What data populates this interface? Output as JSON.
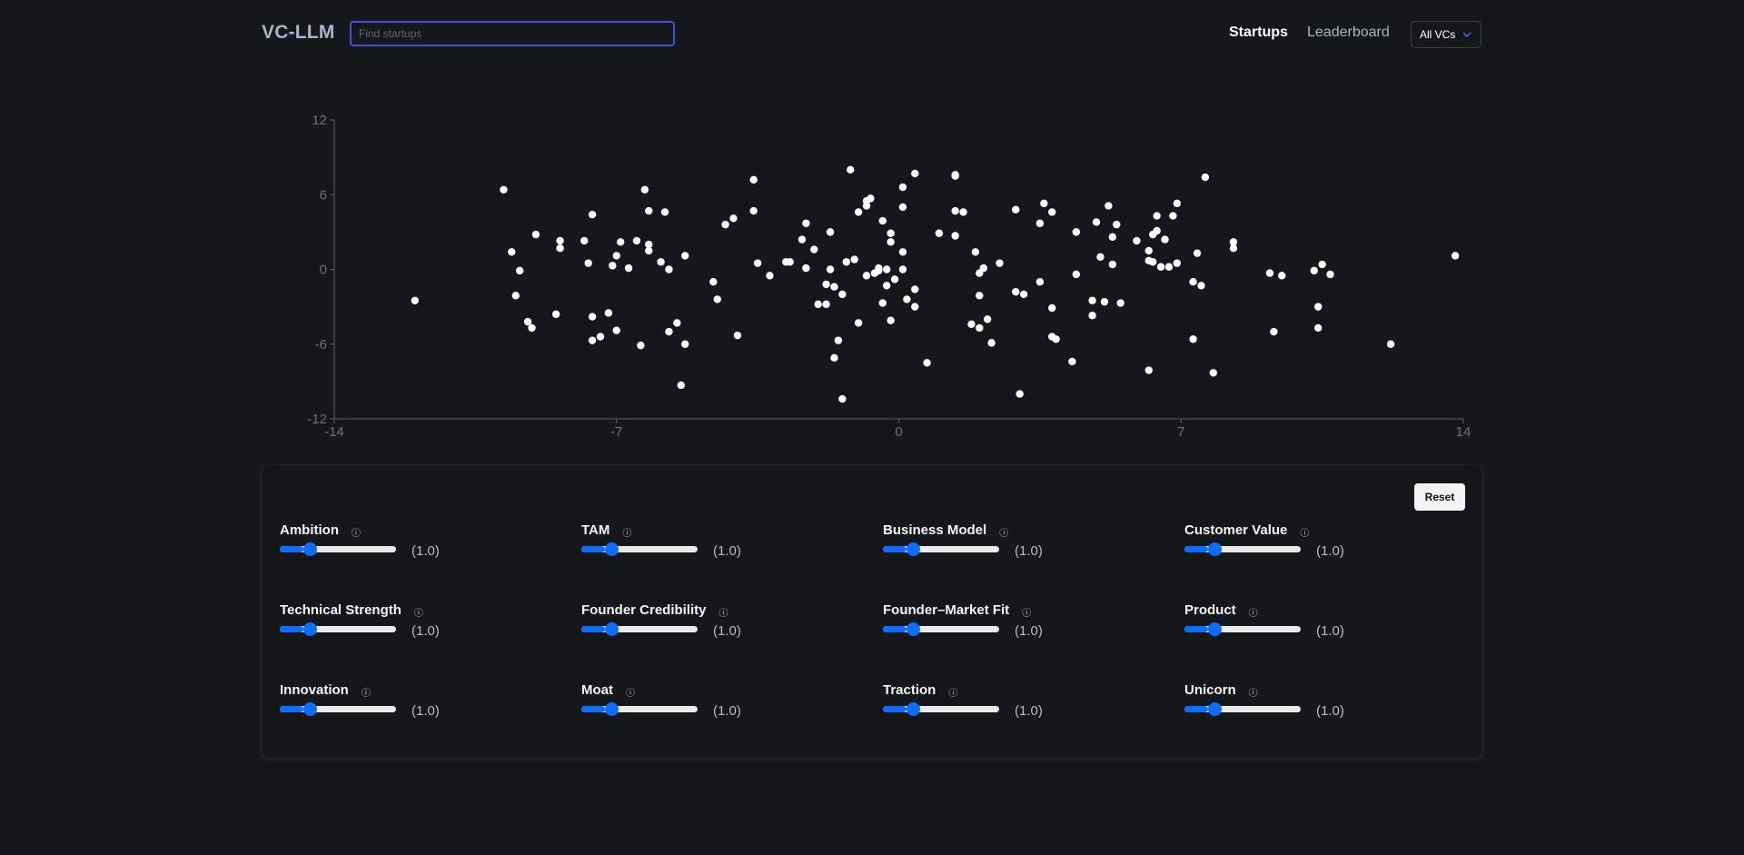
{
  "header": {
    "brand": "VC-LLM",
    "search_placeholder": "Find startups",
    "nav": [
      "Startups",
      "Leaderboard"
    ],
    "vc_select": "All VCs"
  },
  "chart_data": {
    "type": "scatter",
    "xlim": [
      -14,
      14
    ],
    "ylim": [
      -12,
      12
    ],
    "xticks": [
      "-14",
      "-7",
      "0",
      "7",
      "14"
    ],
    "yticks": [
      "12",
      "6",
      "0",
      "-6",
      "-12"
    ],
    "points": [
      [
        -12.0,
        -2.5
      ],
      [
        -9.8,
        6.4
      ],
      [
        -9.6,
        1.4
      ],
      [
        -9.5,
        -2.1
      ],
      [
        -9.4,
        -0.1
      ],
      [
        -9.2,
        -4.2
      ],
      [
        -9.1,
        -4.7
      ],
      [
        -9.0,
        2.8
      ],
      [
        -8.5,
        -3.6
      ],
      [
        -8.4,
        2.3
      ],
      [
        -8.4,
        1.7
      ],
      [
        -7.8,
        2.3
      ],
      [
        -7.7,
        0.5
      ],
      [
        -7.6,
        4.4
      ],
      [
        -7.6,
        -3.8
      ],
      [
        -7.6,
        -5.7
      ],
      [
        -7.4,
        -5.4
      ],
      [
        -7.2,
        -3.5
      ],
      [
        -7.1,
        0.3
      ],
      [
        -7.0,
        -4.9
      ],
      [
        -7.0,
        1.1
      ],
      [
        -6.9,
        2.2
      ],
      [
        -6.7,
        0.1
      ],
      [
        -6.5,
        2.3
      ],
      [
        -6.4,
        -6.1
      ],
      [
        -6.3,
        6.4
      ],
      [
        -6.2,
        4.7
      ],
      [
        -6.2,
        2.0
      ],
      [
        -6.2,
        1.5
      ],
      [
        -5.9,
        0.6
      ],
      [
        -5.8,
        4.6
      ],
      [
        -5.7,
        -5.0
      ],
      [
        -5.7,
        0.0
      ],
      [
        -5.5,
        -4.3
      ],
      [
        -5.4,
        -9.3
      ],
      [
        -5.3,
        1.1
      ],
      [
        -5.3,
        -6.0
      ],
      [
        -4.6,
        -1.0
      ],
      [
        -4.5,
        -2.4
      ],
      [
        -4.3,
        3.6
      ],
      [
        -4.1,
        4.1
      ],
      [
        -4.0,
        -5.3
      ],
      [
        -3.6,
        4.7
      ],
      [
        -3.6,
        7.2
      ],
      [
        -3.5,
        0.5
      ],
      [
        -3.2,
        -0.5
      ],
      [
        -2.8,
        0.6
      ],
      [
        -2.7,
        0.6
      ],
      [
        -2.4,
        2.4
      ],
      [
        -2.3,
        3.7
      ],
      [
        -2.3,
        0.1
      ],
      [
        -2.1,
        1.6
      ],
      [
        -2.0,
        -2.8
      ],
      [
        -1.8,
        -1.2
      ],
      [
        -1.8,
        -2.8
      ],
      [
        -1.7,
        3.0
      ],
      [
        -1.7,
        0.0
      ],
      [
        -1.6,
        -1.4
      ],
      [
        -1.6,
        -7.1
      ],
      [
        -1.5,
        -5.7
      ],
      [
        -1.4,
        -2.0
      ],
      [
        -1.4,
        -10.4
      ],
      [
        -1.3,
        0.6
      ],
      [
        -1.2,
        8.0
      ],
      [
        -1.1,
        0.8
      ],
      [
        -1.0,
        -4.3
      ],
      [
        -1.0,
        4.6
      ],
      [
        -0.8,
        5.5
      ],
      [
        -0.8,
        5.1
      ],
      [
        -0.8,
        -0.5
      ],
      [
        -0.7,
        5.7
      ],
      [
        -0.6,
        -0.3
      ],
      [
        -0.5,
        -0.1
      ],
      [
        -0.5,
        0.1
      ],
      [
        -0.4,
        -2.7
      ],
      [
        -0.4,
        3.9
      ],
      [
        -0.3,
        0.0
      ],
      [
        -0.3,
        -1.3
      ],
      [
        -0.2,
        2.2
      ],
      [
        -0.2,
        2.9
      ],
      [
        -0.2,
        -4.1
      ],
      [
        -0.1,
        -0.8
      ],
      [
        0.1,
        6.6
      ],
      [
        0.1,
        1.4
      ],
      [
        0.1,
        5.0
      ],
      [
        0.1,
        0.0
      ],
      [
        0.2,
        -2.4
      ],
      [
        0.4,
        -1.6
      ],
      [
        0.4,
        -3.0
      ],
      [
        0.4,
        7.7
      ],
      [
        0.7,
        -7.5
      ],
      [
        1.0,
        2.9
      ],
      [
        1.4,
        7.6
      ],
      [
        1.4,
        7.5
      ],
      [
        1.4,
        2.7
      ],
      [
        1.4,
        4.7
      ],
      [
        1.6,
        4.6
      ],
      [
        1.8,
        -4.4
      ],
      [
        1.9,
        1.4
      ],
      [
        2.0,
        -4.7
      ],
      [
        2.0,
        -2.1
      ],
      [
        2.0,
        -0.3
      ],
      [
        2.1,
        0.1
      ],
      [
        2.2,
        -4.0
      ],
      [
        2.3,
        -5.9
      ],
      [
        2.5,
        0.5
      ],
      [
        2.9,
        4.8
      ],
      [
        2.9,
        -1.8
      ],
      [
        3.0,
        -10.0
      ],
      [
        3.1,
        -2.0
      ],
      [
        3.5,
        -1.0
      ],
      [
        3.5,
        3.7
      ],
      [
        3.6,
        5.3
      ],
      [
        3.8,
        4.6
      ],
      [
        3.8,
        -3.1
      ],
      [
        3.8,
        -5.4
      ],
      [
        3.9,
        -5.6
      ],
      [
        4.3,
        -7.4
      ],
      [
        4.4,
        3.0
      ],
      [
        4.4,
        -0.4
      ],
      [
        4.8,
        -3.7
      ],
      [
        4.8,
        -2.5
      ],
      [
        4.9,
        3.8
      ],
      [
        5.0,
        1.0
      ],
      [
        5.1,
        -2.6
      ],
      [
        5.2,
        5.1
      ],
      [
        5.3,
        2.6
      ],
      [
        5.3,
        0.4
      ],
      [
        5.4,
        3.6
      ],
      [
        5.5,
        -2.7
      ],
      [
        5.9,
        2.3
      ],
      [
        6.2,
        1.5
      ],
      [
        6.2,
        -8.1
      ],
      [
        6.2,
        0.7
      ],
      [
        6.3,
        0.6
      ],
      [
        6.3,
        2.8
      ],
      [
        6.4,
        3.1
      ],
      [
        6.4,
        4.3
      ],
      [
        6.5,
        0.2
      ],
      [
        6.6,
        2.4
      ],
      [
        6.7,
        0.2
      ],
      [
        6.8,
        4.3
      ],
      [
        6.9,
        5.3
      ],
      [
        6.9,
        0.5
      ],
      [
        7.3,
        -1.0
      ],
      [
        7.3,
        -5.6
      ],
      [
        7.4,
        1.3
      ],
      [
        7.5,
        -1.3
      ],
      [
        7.6,
        7.4
      ],
      [
        7.8,
        -8.3
      ],
      [
        8.3,
        2.2
      ],
      [
        8.3,
        1.7
      ],
      [
        9.2,
        -0.3
      ],
      [
        9.3,
        -5.0
      ],
      [
        9.5,
        -0.5
      ],
      [
        10.3,
        -0.1
      ],
      [
        10.4,
        -3.0
      ],
      [
        10.4,
        -4.7
      ],
      [
        10.5,
        0.4
      ],
      [
        10.7,
        -0.4
      ],
      [
        12.2,
        -6.0
      ],
      [
        13.8,
        1.1
      ]
    ]
  },
  "controls": {
    "reset_label": "Reset",
    "sliders": [
      {
        "label": "Ambition",
        "value": 1.0,
        "display": "(1.0)",
        "min": 0,
        "max": 5
      },
      {
        "label": "TAM",
        "value": 1.0,
        "display": "(1.0)",
        "min": 0,
        "max": 5
      },
      {
        "label": "Business Model",
        "value": 1.0,
        "display": "(1.0)",
        "min": 0,
        "max": 5
      },
      {
        "label": "Customer Value",
        "value": 1.0,
        "display": "(1.0)",
        "min": 0,
        "max": 5
      },
      {
        "label": "Technical Strength",
        "value": 1.0,
        "display": "(1.0)",
        "min": 0,
        "max": 5
      },
      {
        "label": "Founder Credibility",
        "value": 1.0,
        "display": "(1.0)",
        "min": 0,
        "max": 5
      },
      {
        "label": "Founder–Market Fit",
        "value": 1.0,
        "display": "(1.0)",
        "min": 0,
        "max": 5
      },
      {
        "label": "Product",
        "value": 1.0,
        "display": "(1.0)",
        "min": 0,
        "max": 5
      },
      {
        "label": "Innovation",
        "value": 1.0,
        "display": "(1.0)",
        "min": 0,
        "max": 5
      },
      {
        "label": "Moat",
        "value": 1.0,
        "display": "(1.0)",
        "min": 0,
        "max": 5
      },
      {
        "label": "Traction",
        "value": 1.0,
        "display": "(1.0)",
        "min": 0,
        "max": 5
      },
      {
        "label": "Unicorn",
        "value": 1.0,
        "display": "(1.0)",
        "min": 0,
        "max": 5
      }
    ],
    "info_glyph": "ⓘ"
  }
}
